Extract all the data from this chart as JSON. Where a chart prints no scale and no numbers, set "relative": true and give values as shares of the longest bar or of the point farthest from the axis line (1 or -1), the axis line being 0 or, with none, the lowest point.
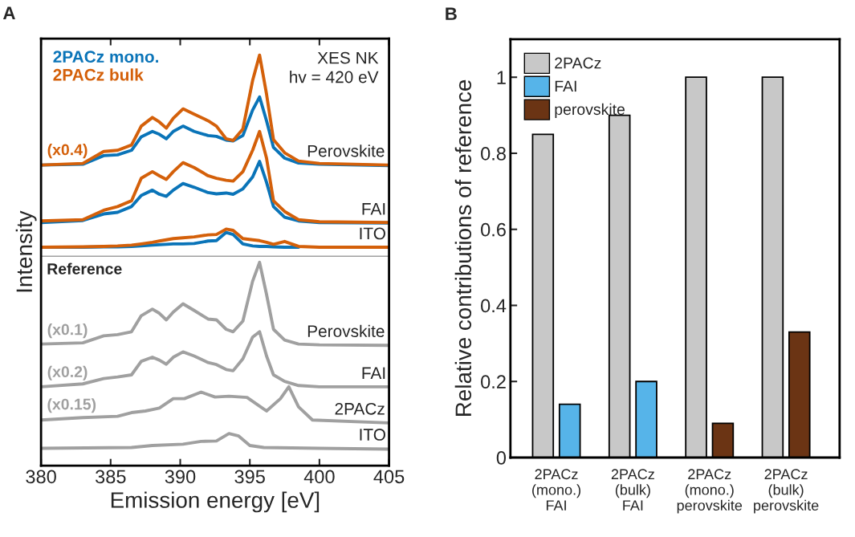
{
  "chart_data": [
    {
      "type": "line",
      "title": "A",
      "xlabel": "Emission energy [eV]",
      "ylabel": "Intensity",
      "relative": true,
      "xlim": [
        380,
        405
      ],
      "xticks": [
        380,
        385,
        390,
        395,
        400,
        405
      ],
      "legend": "top left",
      "x": [
        380,
        383,
        384.5,
        385.5,
        386.5,
        387.2,
        388,
        388.5,
        389,
        389.5,
        390.2,
        391,
        392,
        392.6,
        393.3,
        393.8,
        394.5,
        395.2,
        395.7,
        396.2,
        396.7,
        397.5,
        398.5,
        400,
        405
      ],
      "series": [
        {
          "name": "2PACz mono.",
          "color": "#0a74b8",
          "values": [
            0.732,
            0.734,
            0.755,
            0.757,
            0.768,
            0.801,
            0.814,
            0.807,
            0.796,
            0.814,
            0.827,
            0.814,
            0.804,
            0.802,
            0.793,
            0.791,
            0.804,
            0.866,
            0.898,
            0.84,
            0.775,
            0.749,
            0.737,
            0.734,
            0.731
          ]
        },
        {
          "name": "2PACz bulk",
          "color": "#d4600a",
          "values": [
            0.732,
            0.736,
            0.765,
            0.768,
            0.781,
            0.827,
            0.848,
            0.837,
            0.822,
            0.846,
            0.869,
            0.856,
            0.84,
            0.827,
            0.796,
            0.792,
            0.82,
            0.938,
            1.0,
            0.905,
            0.794,
            0.762,
            0.742,
            0.736,
            0.732
          ]
        },
        {
          "color": "#0a74b8",
          "values": [
            0.592,
            0.597,
            0.613,
            0.617,
            0.631,
            0.658,
            0.671,
            0.661,
            0.656,
            0.671,
            0.687,
            0.678,
            0.665,
            0.662,
            0.664,
            0.661,
            0.674,
            0.703,
            0.741,
            0.69,
            0.631,
            0.605,
            0.596,
            0.592,
            0.591
          ]
        },
        {
          "color": "#d4600a",
          "values": [
            0.596,
            0.599,
            0.622,
            0.631,
            0.645,
            0.7,
            0.716,
            0.706,
            0.697,
            0.716,
            0.738,
            0.726,
            0.706,
            0.7,
            0.695,
            0.693,
            0.716,
            0.768,
            0.814,
            0.749,
            0.645,
            0.619,
            0.599,
            0.594,
            0.592
          ]
        },
        {
          "color": "#0a74b8",
          "values": [
            0.532,
            0.532,
            0.533,
            0.533,
            0.534,
            0.535,
            0.537,
            0.538,
            0.539,
            0.54,
            0.54,
            0.541,
            0.547,
            0.548,
            0.568,
            0.563,
            0.54,
            0.535,
            0.534,
            0.534,
            0.533,
            0.532,
            0.532,
            null,
            null
          ]
        },
        {
          "color": "#d4600a",
          "values": [
            0.532,
            0.533,
            0.534,
            0.535,
            0.537,
            0.54,
            0.544,
            0.547,
            0.55,
            0.553,
            0.555,
            0.557,
            0.562,
            0.563,
            0.576,
            0.573,
            0.553,
            0.55,
            0.548,
            0.544,
            0.539,
            0.546,
            0.534,
            0.532,
            0.532
          ]
        },
        {
          "color": "#a0a0a0",
          "values": [
            0.296,
            0.299,
            0.316,
            0.319,
            0.326,
            0.365,
            0.381,
            0.371,
            0.355,
            0.374,
            0.394,
            0.378,
            0.357,
            0.355,
            0.332,
            0.326,
            0.352,
            0.449,
            0.495,
            0.417,
            0.332,
            0.306,
            0.296,
            0.294,
            0.293
          ]
        },
        {
          "color": "#a0a0a0",
          "values": [
            0.192,
            0.199,
            0.212,
            0.216,
            0.221,
            0.254,
            0.264,
            0.257,
            0.247,
            0.264,
            0.277,
            0.267,
            0.251,
            0.246,
            0.234,
            0.231,
            0.26,
            0.313,
            0.326,
            0.267,
            0.221,
            0.205,
            0.195,
            0.192,
            0.192
          ]
        },
        {
          "color": "#a0a0a0",
          "x": [
            380,
            383,
            385.5,
            386.5,
            387.5,
            388.5,
            389.5,
            390.3,
            391.5,
            392.5,
            393.5,
            394.8,
            396.2,
            397.2,
            397.8,
            398.5,
            399.5,
            405
          ],
          "values": [
            0.111,
            0.117,
            0.12,
            0.129,
            0.133,
            0.14,
            0.163,
            0.163,
            0.179,
            0.167,
            0.169,
            0.166,
            0.133,
            0.163,
            0.192,
            0.143,
            0.111,
            0.104
          ]
        },
        {
          "color": "#a0a0a0",
          "x": [
            380,
            386.5,
            388,
            390.2,
            391.5,
            392.6,
            393.5,
            394.2,
            395,
            396,
            400,
            405
          ],
          "values": [
            0.042,
            0.044,
            0.049,
            0.052,
            0.059,
            0.06,
            0.078,
            0.072,
            0.049,
            0.044,
            0.042,
            0.04
          ]
        }
      ],
      "ref_lines": [
        {
          "axis": "y",
          "value": 0.51,
          "color": "#a0a0a0",
          "label": "Reference"
        }
      ],
      "annotations": [
        "XES NK\nhv = 420 eV",
        {
          "text": "Perovskite",
          "x": 401.9,
          "y": 0.733
        },
        {
          "text": "FAI",
          "x": 403.9,
          "y": 0.592
        },
        {
          "text": "ITO",
          "x": 403.8,
          "y": 0.532
        },
        {
          "text": "(x0.4)",
          "x": 381.9,
          "y": 0.735
        },
        {
          "text": "Perovskite",
          "x": 401.9,
          "y": 0.294
        },
        {
          "text": "FAI",
          "x": 403.9,
          "y": 0.192
        },
        {
          "text": "2PACz",
          "x": 402.9,
          "y": 0.105
        },
        {
          "text": "ITO",
          "x": 403.8,
          "y": 0.042
        },
        {
          "text": "(x0.1)",
          "x": 381.9,
          "y": 0.297
        },
        {
          "text": "(x0.2)",
          "x": 381.9,
          "y": 0.194
        },
        {
          "text": "(x0.15)",
          "x": 382.2,
          "y": 0.115
        }
      ]
    },
    {
      "type": "bar",
      "title": "B",
      "ylabel": "Relative contributions of reference",
      "categories": [
        "2PACz\n(mono.)\nFAI",
        "2PACz\n(bulk)\nFAI",
        "2PACz\n(mono.)\nperovskite",
        "2PACz\n(bulk)\nperovskite"
      ],
      "ylim": [
        0,
        1.1
      ],
      "yticks": [
        0,
        0.2,
        0.4,
        0.6,
        0.8,
        1
      ],
      "legend": "top left",
      "series": [
        {
          "name": "2PACz",
          "color": "#c8c8c8",
          "values": [
            0.85,
            0.9,
            1.0,
            1.0
          ]
        },
        {
          "name": "FAI",
          "color": "#56b4e9",
          "values": [
            0.14,
            0.2,
            null,
            null
          ]
        },
        {
          "name": "perovskite",
          "color": "#6b3414",
          "values": [
            null,
            null,
            0.09,
            0.33
          ]
        }
      ]
    }
  ]
}
